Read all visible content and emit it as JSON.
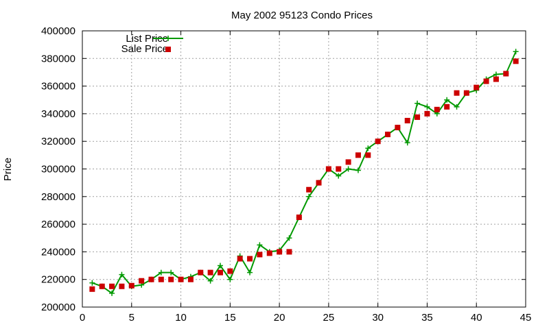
{
  "chart_data": {
    "type": "line",
    "title": "May 2002 95123 Condo Prices",
    "xlabel": "",
    "ylabel": "Price",
    "xlim": [
      0,
      45
    ],
    "ylim": [
      200000,
      400000
    ],
    "xticks": [
      0,
      5,
      10,
      15,
      20,
      25,
      30,
      35,
      40,
      45
    ],
    "yticks": [
      200000,
      220000,
      240000,
      260000,
      280000,
      300000,
      320000,
      340000,
      360000,
      380000,
      400000
    ],
    "grid": true,
    "legend_position": "top-left",
    "series": [
      {
        "name": "List Price",
        "style": "line-with-plus-markers",
        "color": "#009900",
        "points": [
          [
            1,
            217500
          ],
          [
            2,
            215000
          ],
          [
            3,
            210000
          ],
          [
            4,
            223500
          ],
          [
            5,
            215000
          ],
          [
            6,
            216000
          ],
          [
            7,
            220000
          ],
          [
            8,
            225000
          ],
          [
            9,
            225000
          ],
          [
            10,
            220000
          ],
          [
            11,
            222000
          ],
          [
            12,
            225000
          ],
          [
            13,
            219000
          ],
          [
            14,
            230000
          ],
          [
            15,
            220000
          ],
          [
            16,
            237000
          ],
          [
            17,
            225000
          ],
          [
            18,
            245000
          ],
          [
            19,
            240000
          ],
          [
            20,
            241000
          ],
          [
            21,
            250000
          ],
          [
            22,
            265000
          ],
          [
            23,
            280000
          ],
          [
            24,
            290000
          ],
          [
            25,
            300000
          ],
          [
            26,
            295000
          ],
          [
            27,
            300000
          ],
          [
            28,
            299000
          ],
          [
            29,
            315000
          ],
          [
            30,
            320000
          ],
          [
            31,
            325000
          ],
          [
            32,
            330000
          ],
          [
            33,
            319000
          ],
          [
            34,
            347500
          ],
          [
            35,
            345000
          ],
          [
            36,
            340000
          ],
          [
            37,
            350000
          ],
          [
            38,
            345000
          ],
          [
            39,
            355000
          ],
          [
            40,
            357000
          ],
          [
            41,
            365000
          ],
          [
            42,
            368500
          ],
          [
            43,
            369000
          ],
          [
            44,
            385000
          ]
        ]
      },
      {
        "name": "Sale Price",
        "style": "square-markers",
        "color": "#cc0000",
        "points": [
          [
            1,
            213000
          ],
          [
            2,
            215000
          ],
          [
            3,
            215000
          ],
          [
            4,
            215000
          ],
          [
            5,
            215500
          ],
          [
            6,
            219000
          ],
          [
            7,
            220000
          ],
          [
            8,
            220000
          ],
          [
            9,
            220000
          ],
          [
            10,
            220000
          ],
          [
            11,
            220000
          ],
          [
            12,
            225000
          ],
          [
            13,
            225000
          ],
          [
            14,
            225000
          ],
          [
            15,
            226000
          ],
          [
            16,
            235000
          ],
          [
            17,
            235000
          ],
          [
            18,
            238000
          ],
          [
            19,
            239000
          ],
          [
            20,
            240000
          ],
          [
            21,
            240000
          ],
          [
            22,
            265000
          ],
          [
            23,
            285000
          ],
          [
            24,
            290000
          ],
          [
            25,
            300000
          ],
          [
            26,
            300000
          ],
          [
            27,
            305000
          ],
          [
            28,
            310000
          ],
          [
            29,
            310000
          ],
          [
            30,
            320000
          ],
          [
            31,
            325000
          ],
          [
            32,
            330000
          ],
          [
            33,
            335000
          ],
          [
            34,
            337500
          ],
          [
            35,
            340000
          ],
          [
            36,
            343000
          ],
          [
            37,
            345000
          ],
          [
            38,
            355000
          ],
          [
            39,
            355000
          ],
          [
            40,
            359000
          ],
          [
            41,
            363500
          ],
          [
            42,
            365000
          ],
          [
            43,
            369000
          ],
          [
            44,
            378000
          ]
        ]
      }
    ]
  }
}
